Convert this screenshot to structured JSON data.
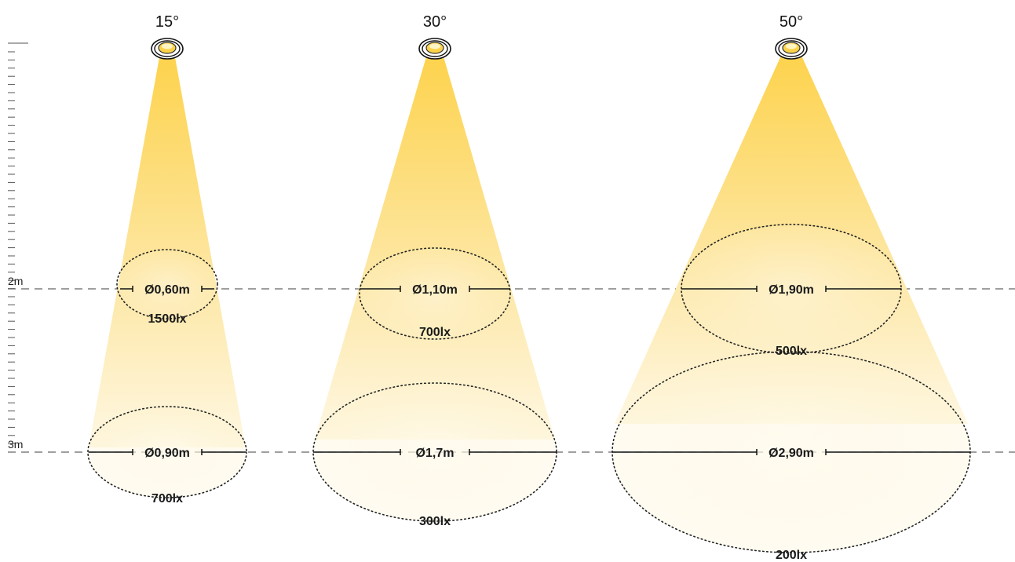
{
  "height_markers": [
    {
      "label": "2m"
    },
    {
      "label": "3m"
    }
  ],
  "beams": [
    {
      "angle": "15°",
      "rings": [
        {
          "diameter": "Ø0,60m",
          "lux": "1500lx"
        },
        {
          "diameter": "Ø0,90m",
          "lux": "700lx"
        }
      ]
    },
    {
      "angle": "30°",
      "rings": [
        {
          "diameter": "Ø1,10m",
          "lux": "700lx"
        },
        {
          "diameter": "Ø1,7m",
          "lux": "300lx"
        }
      ]
    },
    {
      "angle": "50°",
      "rings": [
        {
          "diameter": "Ø1,90m",
          "lux": "500lx"
        },
        {
          "diameter": "Ø2,90m",
          "lux": "200lx"
        }
      ]
    }
  ],
  "colors": {
    "beam_top": "#fdd24a",
    "beam_bottom": "#fef6dc",
    "spot_glow": "#ffe9a8",
    "dashed_line": "#666666"
  }
}
